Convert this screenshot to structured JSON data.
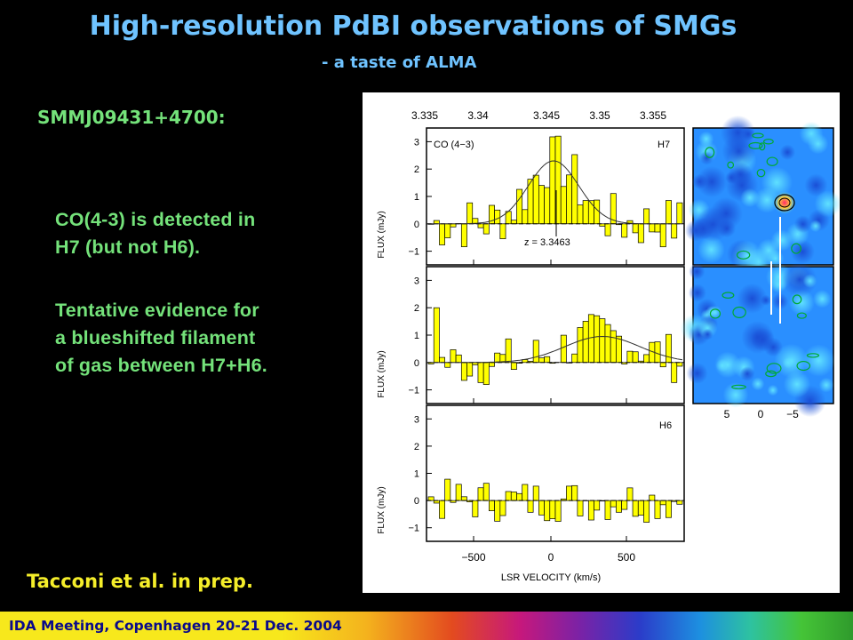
{
  "slide": {
    "title": "High-resolution PdBI observations of SMGs",
    "subtitle": "- a taste of ALMA",
    "source_label": "SMMJ09431+4700:",
    "paragraph1": [
      "CO(4-3) is detected in",
      "H7 (but not H6)."
    ],
    "paragraph2": [
      "Tentative evidence for",
      "a blueshifted filament",
      "of gas between H7+H6."
    ],
    "citation": "Tacconi et al. in prep.",
    "footer": "IDA Meeting, Copenhagen 20-21 Dec. 2004"
  },
  "figure": {
    "redshift_axis": [
      "3.335",
      "3.34",
      "3.345",
      "3.35",
      "3.355"
    ],
    "panels": [
      {
        "label": "CO (4−3)",
        "tag": "H7",
        "annotation": "z = 3.3463"
      },
      {
        "label": "",
        "tag": "",
        "annotation": ""
      },
      {
        "label": "",
        "tag": "H6",
        "annotation": ""
      }
    ],
    "y_label": "FLUX  (mJy)",
    "y_ticks": [
      "3",
      "2",
      "1",
      "0",
      "−1"
    ],
    "x_ticks": [
      "−500",
      "0",
      "500"
    ],
    "x_label": "LSR VELOCITY  (km/s)",
    "map_ticks": [
      "5",
      "0",
      "−5"
    ]
  },
  "colors": {
    "heading": "#6fc3ff",
    "text": "#74e27a",
    "citation": "#f5ee2a",
    "spectrum_fill": "#ffff00",
    "footer_text": "#0a0a8a"
  }
}
